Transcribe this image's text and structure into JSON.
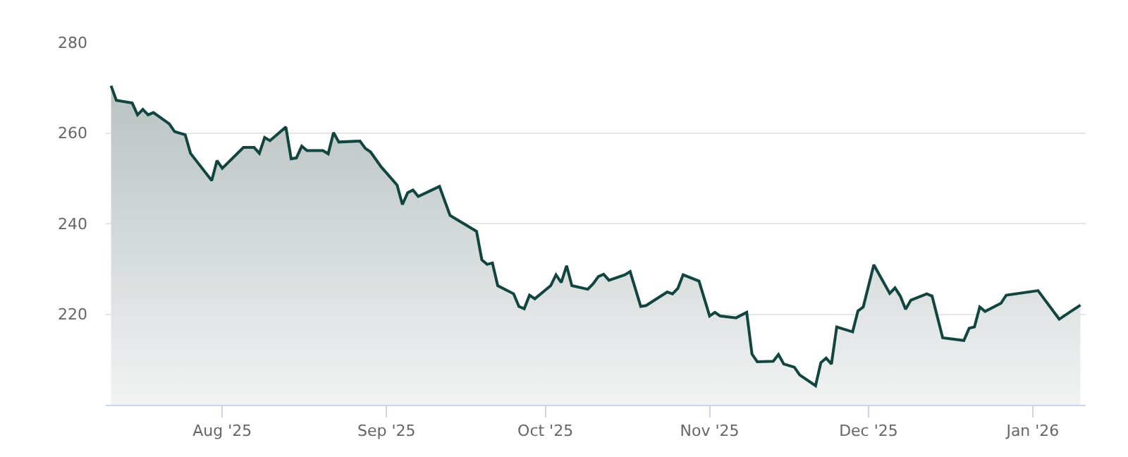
{
  "chart_data": {
    "type": "area",
    "x": [
      "2025-07-11",
      "2025-07-12",
      "2025-07-15",
      "2025-07-16",
      "2025-07-17",
      "2025-07-18",
      "2025-07-19",
      "2025-07-22",
      "2025-07-23",
      "2025-07-25",
      "2025-07-26",
      "2025-07-30",
      "2025-07-31",
      "2025-08-01",
      "2025-08-05",
      "2025-08-07",
      "2025-08-08",
      "2025-08-09",
      "2025-08-10",
      "2025-08-13",
      "2025-08-14",
      "2025-08-15",
      "2025-08-16",
      "2025-08-17",
      "2025-08-20",
      "2025-08-21",
      "2025-08-22",
      "2025-08-23",
      "2025-08-27",
      "2025-08-28",
      "2025-08-29",
      "2025-08-31",
      "2025-09-03",
      "2025-09-04",
      "2025-09-05",
      "2025-09-06",
      "2025-09-07",
      "2025-09-11",
      "2025-09-13",
      "2025-09-14",
      "2025-09-18",
      "2025-09-19",
      "2025-09-20",
      "2025-09-21",
      "2025-09-22",
      "2025-09-25",
      "2025-09-26",
      "2025-09-27",
      "2025-09-28",
      "2025-09-29",
      "2025-10-02",
      "2025-10-03",
      "2025-10-04",
      "2025-10-05",
      "2025-10-06",
      "2025-10-09",
      "2025-10-10",
      "2025-10-11",
      "2025-10-12",
      "2025-10-13",
      "2025-10-16",
      "2025-10-17",
      "2025-10-19",
      "2025-10-20",
      "2025-10-24",
      "2025-10-25",
      "2025-10-26",
      "2025-10-27",
      "2025-10-30",
      "2025-11-01",
      "2025-11-02",
      "2025-11-03",
      "2025-11-06",
      "2025-11-08",
      "2025-11-09",
      "2025-11-10",
      "2025-11-13",
      "2025-11-14",
      "2025-11-15",
      "2025-11-17",
      "2025-11-18",
      "2025-11-21",
      "2025-11-22",
      "2025-11-23",
      "2025-11-24",
      "2025-11-25",
      "2025-11-28",
      "2025-11-29",
      "2025-11-30",
      "2025-12-02",
      "2025-12-05",
      "2025-12-06",
      "2025-12-07",
      "2025-12-08",
      "2025-12-09",
      "2025-12-12",
      "2025-12-13",
      "2025-12-15",
      "2025-12-19",
      "2025-12-20",
      "2025-12-21",
      "2025-12-22",
      "2025-12-23",
      "2025-12-26",
      "2025-12-27",
      "2026-01-02",
      "2026-01-06",
      "2026-01-10"
    ],
    "series": [
      {
        "color": "#12453f",
        "values": [
          270.4,
          267.2,
          266.6,
          264.0,
          265.2,
          264.0,
          264.5,
          262.0,
          260.3,
          259.6,
          255.5,
          249.5,
          253.9,
          252.2,
          256.8,
          256.8,
          255.5,
          259.0,
          258.3,
          261.3,
          254.3,
          254.5,
          257.1,
          256.1,
          256.1,
          255.4,
          260.1,
          258.0,
          258.2,
          256.6,
          255.8,
          252.5,
          248.5,
          244.2,
          246.8,
          247.4,
          246.0,
          248.2,
          241.8,
          241.1,
          238.3,
          232.0,
          231.0,
          231.3,
          226.3,
          224.5,
          221.7,
          221.2,
          224.2,
          223.4,
          226.3,
          228.7,
          227.0,
          230.7,
          226.3,
          225.5,
          226.7,
          228.3,
          228.8,
          227.5,
          228.7,
          229.4,
          221.7,
          221.9,
          224.9,
          224.5,
          225.7,
          228.7,
          227.3,
          219.6,
          220.4,
          219.6,
          219.2,
          220.4,
          211.2,
          209.5,
          209.6,
          211.1,
          209.0,
          208.3,
          206.6,
          204.2,
          209.3,
          210.3,
          209.0,
          217.2,
          216.1,
          220.7,
          221.6,
          230.9,
          224.6,
          225.8,
          224.0,
          221.1,
          223.1,
          224.5,
          224.0,
          214.8,
          214.2,
          216.9,
          217.2,
          221.6,
          220.6,
          222.4,
          224.2,
          225.2,
          218.9,
          222.0
        ]
      }
    ],
    "xlim": [
      "2025-07-10",
      "2026-01-11"
    ],
    "xticks": [
      {
        "value": "2025-08-01",
        "label": "Aug '25"
      },
      {
        "value": "2025-09-01",
        "label": "Sep '25"
      },
      {
        "value": "2025-10-01",
        "label": "Oct '25"
      },
      {
        "value": "2025-11-01",
        "label": "Nov '25"
      },
      {
        "value": "2025-12-01",
        "label": "Dec '25"
      },
      {
        "value": "2026-01-01",
        "label": "Jan '26"
      }
    ],
    "ylim": [
      200,
      280
    ],
    "yticks": [
      220,
      240,
      260,
      280
    ],
    "grid": "y"
  }
}
